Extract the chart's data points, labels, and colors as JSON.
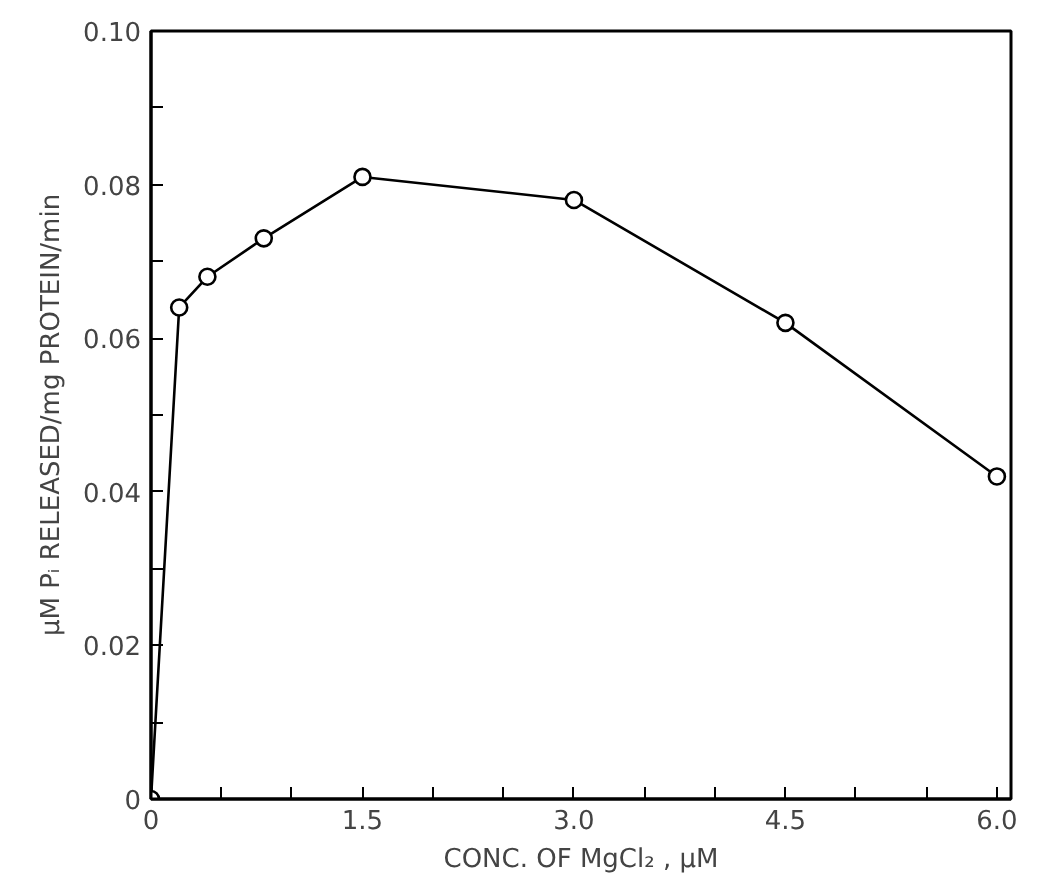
{
  "chart_data": {
    "type": "line",
    "xlabel": "CONC. OF MgCl₂ , μM",
    "ylabel": "μM Pᵢ RELEASED/mg PROTEIN/min",
    "x": [
      0,
      0.2,
      0.4,
      0.8,
      1.5,
      3.0,
      4.5,
      6.0
    ],
    "series": [
      {
        "color": "#000000",
        "values": [
          0,
          0.064,
          0.068,
          0.073,
          0.081,
          0.078,
          0.062,
          0.042
        ]
      }
    ],
    "xlim": [
      0,
      6.1
    ],
    "ylim": [
      0,
      0.1
    ],
    "xticks": [
      0,
      {
        "value": 0.5,
        "label": null
      },
      {
        "value": 1.0,
        "label": null
      },
      {
        "value": 1.5,
        "label": "1.5"
      },
      {
        "value": 2.0,
        "label": null
      },
      {
        "value": 2.5,
        "label": null
      },
      {
        "value": 3.0,
        "label": "3.0"
      },
      {
        "value": 3.5,
        "label": null
      },
      {
        "value": 4.0,
        "label": null
      },
      {
        "value": 4.5,
        "label": "4.5"
      },
      {
        "value": 5.0,
        "label": null
      },
      {
        "value": 5.5,
        "label": null
      },
      {
        "value": 6.0,
        "label": "6.0"
      }
    ],
    "yticks": [
      0,
      {
        "value": 0.01,
        "label": null
      },
      {
        "value": 0.02,
        "label": "0.02"
      },
      {
        "value": 0.03,
        "label": null
      },
      {
        "value": 0.04,
        "label": "0.04"
      },
      {
        "value": 0.05,
        "label": null
      },
      {
        "value": 0.06,
        "label": "0.06"
      },
      {
        "value": 0.07,
        "label": null
      },
      {
        "value": 0.08,
        "label": "0.08"
      },
      {
        "value": 0.09,
        "label": null
      },
      {
        "value": 0.1,
        "label": "0.10"
      }
    ],
    "grid": false,
    "marker": "circle",
    "line_style": "solid"
  }
}
